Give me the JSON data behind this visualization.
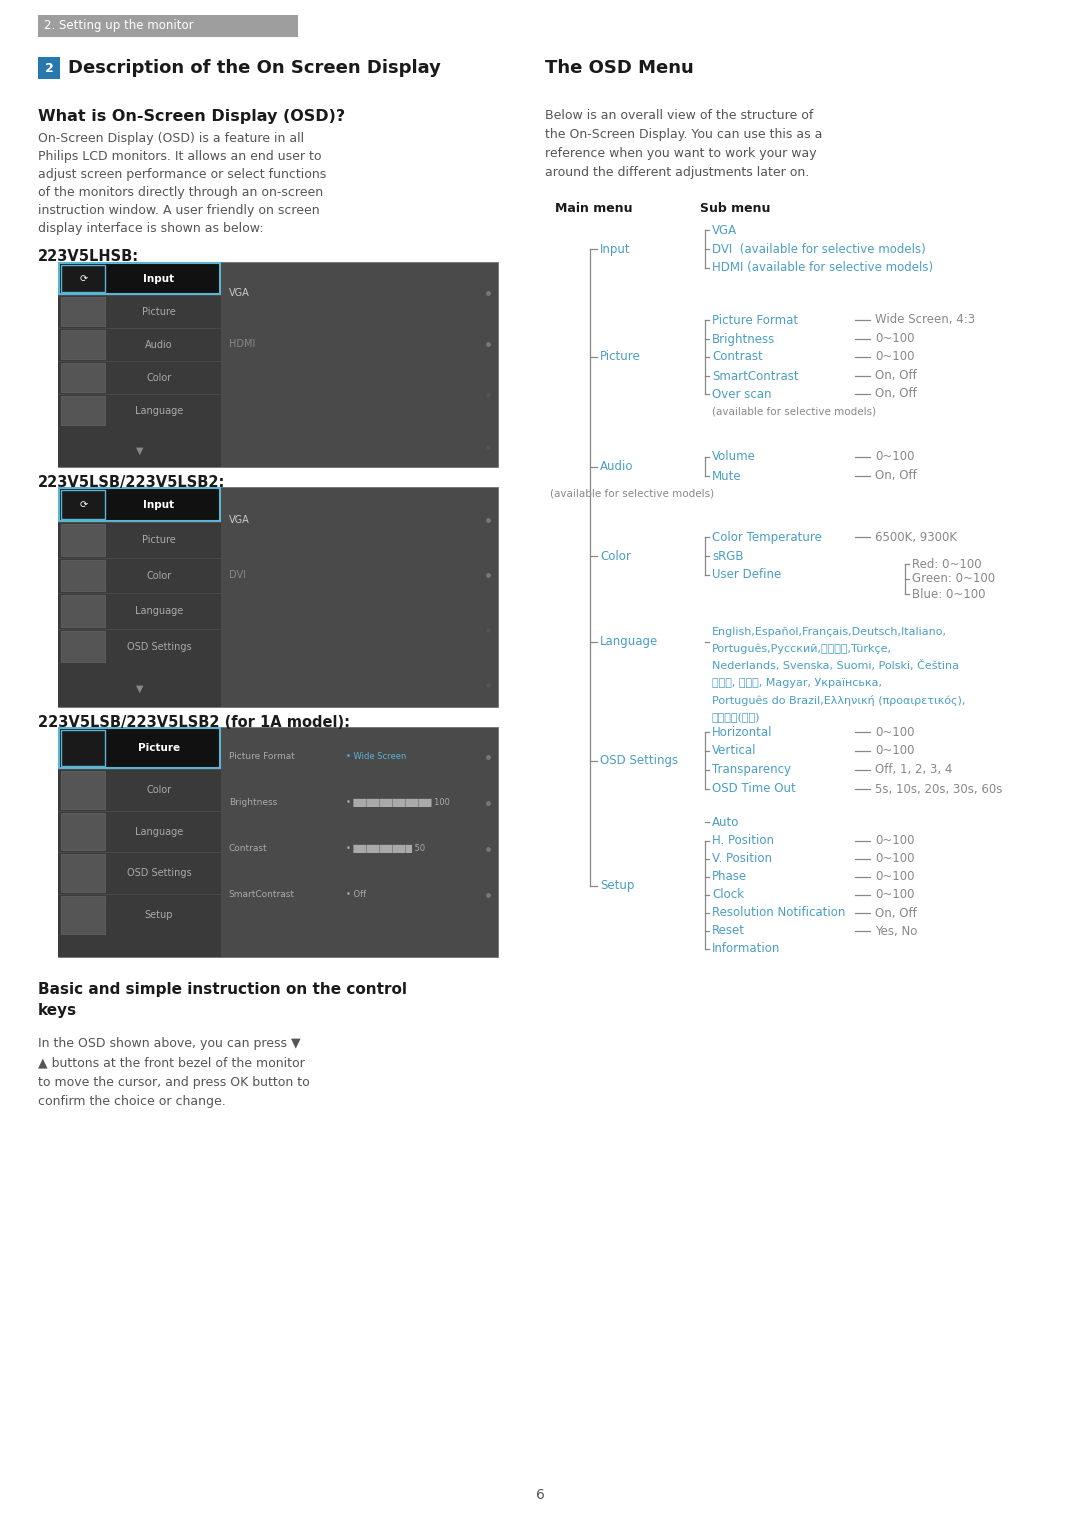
{
  "page_bg": "#ffffff",
  "header_bg": "#9e9e9e",
  "header_text": "2. Setting up the monitor",
  "header_text_color": "#ffffff",
  "section_num_bg": "#2878b0",
  "section_num_text": "2",
  "section_title": "Description of the On Screen Display",
  "subsection1_title": "What is On-Screen Display (OSD)?",
  "osd_description_lines": [
    "On-Screen Display (OSD) is a feature in all",
    "Philips LCD monitors. It allows an end user to",
    "adjust screen performance or select functions",
    "of the monitors directly through an on-screen",
    "instruction window. A user friendly on screen",
    "display interface is shown as below:"
  ],
  "label1": "223V5LHSB:",
  "label2": "223V5LSB/223V5LSB2:",
  "label3": "223V5LSB/223V5LSB2 (for 1A model):",
  "osd_menu_bg": "#4a4a4a",
  "osd_menu_left_bg": "#3a3a3a",
  "osd_selected_bg": "#111111",
  "osd_selected_border": "#5ab4d4",
  "osd_text_color": "#aaaaaa",
  "osd_selected_text": "#ffffff",
  "osd_blue_accent": "#5ab4d4",
  "right_title": "The OSD Menu",
  "right_desc_lines": [
    "Below is an overall view of the structure of",
    "the On-Screen Display. You can use this as a",
    "reference when you want to work your way",
    "around the different adjustments later on."
  ],
  "main_menu_label": "Main menu",
  "sub_menu_label": "Sub menu",
  "tree_color": "#888888",
  "tree_item_color": "#4a9ec5",
  "tree_value_color": "#888888",
  "basic_instruction_title": "Basic and simple instruction on the control\nkeys",
  "basic_instruction_body": "In the OSD shown above, you can press ▼\n▲ buttons at the front bezel of the monitor\nto move the cursor, and press OK button to\nconfirm the choice or change.",
  "page_number": "6"
}
